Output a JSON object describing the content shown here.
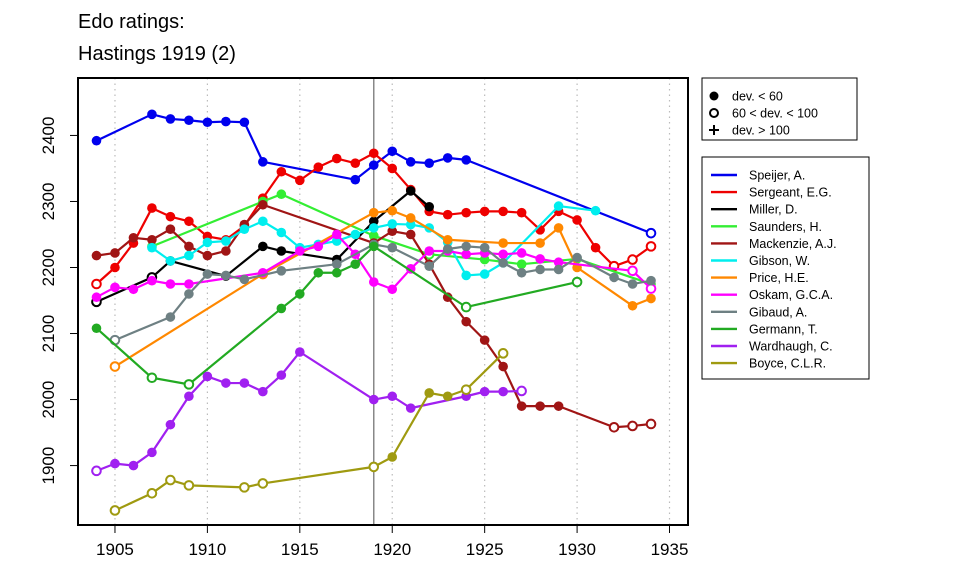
{
  "chart_data": {
    "type": "line",
    "title": "Edo ratings:",
    "subtitle": "Hastings 1919 (2)",
    "xlabel": "",
    "ylabel": "",
    "xlim": [
      1903,
      1936
    ],
    "ylim": [
      1810,
      2487
    ],
    "x_ticks": [
      1905,
      1910,
      1915,
      1920,
      1925,
      1930,
      1935
    ],
    "y_ticks": [
      1900,
      2000,
      2100,
      2200,
      2300,
      2400
    ],
    "reference_line_x": 1919,
    "grid": "dotted vertical at x ticks",
    "marker_legend": [
      {
        "key": "filled",
        "label": "dev. < 60"
      },
      {
        "key": "open",
        "label": "60 < dev. < 100"
      },
      {
        "key": "plus",
        "label": "dev. > 100"
      }
    ],
    "series": [
      {
        "name": "Speijer, A.",
        "color": "#0000ee",
        "points": [
          [
            1904,
            2392,
            "f"
          ],
          [
            1907,
            2432,
            "f"
          ],
          [
            1908,
            2425,
            "f"
          ],
          [
            1909,
            2423,
            "f"
          ],
          [
            1910,
            2420,
            "f"
          ],
          [
            1911,
            2421,
            "f"
          ],
          [
            1912,
            2420,
            "f"
          ],
          [
            1913,
            2360,
            "f"
          ],
          [
            1918,
            2333,
            "f"
          ],
          [
            1919,
            2355,
            "f"
          ],
          [
            1920,
            2376,
            "f"
          ],
          [
            1921,
            2360,
            "f"
          ],
          [
            1922,
            2358,
            "f"
          ],
          [
            1923,
            2366,
            "f"
          ],
          [
            1924,
            2363,
            "f"
          ],
          [
            1934,
            2252,
            "o"
          ]
        ]
      },
      {
        "name": "Sergeant, E.G.",
        "color": "#ee0000",
        "points": [
          [
            1904,
            2175,
            "o"
          ],
          [
            1905,
            2200,
            "f"
          ],
          [
            1906,
            2237,
            "f"
          ],
          [
            1907,
            2290,
            "f"
          ],
          [
            1908,
            2277,
            "f"
          ],
          [
            1909,
            2270,
            "f"
          ],
          [
            1910,
            2247,
            "f"
          ],
          [
            1911,
            2242,
            "f"
          ],
          [
            1912,
            2263,
            "f"
          ],
          [
            1913,
            2305,
            "f"
          ],
          [
            1914,
            2345,
            "f"
          ],
          [
            1915,
            2332,
            "f"
          ],
          [
            1916,
            2352,
            "f"
          ],
          [
            1917,
            2365,
            "f"
          ],
          [
            1918,
            2358,
            "f"
          ],
          [
            1919,
            2373,
            "f"
          ],
          [
            1920,
            2350,
            "f"
          ],
          [
            1921,
            2318,
            "f"
          ],
          [
            1922,
            2285,
            "f"
          ],
          [
            1923,
            2280,
            "f"
          ],
          [
            1924,
            2283,
            "f"
          ],
          [
            1925,
            2285,
            "f"
          ],
          [
            1926,
            2285,
            "f"
          ],
          [
            1927,
            2283,
            "f"
          ],
          [
            1928,
            2257,
            "f"
          ],
          [
            1929,
            2285,
            "f"
          ],
          [
            1930,
            2272,
            "f"
          ],
          [
            1931,
            2230,
            "f"
          ],
          [
            1932,
            2202,
            "o"
          ],
          [
            1933,
            2212,
            "o"
          ],
          [
            1934,
            2232,
            "o"
          ]
        ]
      },
      {
        "name": "Miller, D.",
        "color": "#000000",
        "points": [
          [
            1904,
            2148,
            "o"
          ],
          [
            1907,
            2185,
            "o"
          ],
          [
            1908,
            2210,
            "f"
          ],
          [
            1911,
            2187,
            "f"
          ],
          [
            1913,
            2232,
            "f"
          ],
          [
            1914,
            2225,
            "f"
          ],
          [
            1917,
            2212,
            "f"
          ],
          [
            1919,
            2270,
            "f"
          ],
          [
            1921,
            2316,
            "f"
          ],
          [
            1922,
            2292,
            "f"
          ]
        ]
      },
      {
        "name": "Saunders, H.",
        "color": "#33ee33",
        "points": [
          [
            1907,
            2232,
            "f"
          ],
          [
            1913,
            2300,
            "f"
          ],
          [
            1914,
            2311,
            "f"
          ],
          [
            1919,
            2248,
            "f"
          ],
          [
            1922,
            2220,
            "o"
          ],
          [
            1925,
            2212,
            "f"
          ],
          [
            1927,
            2205,
            "f"
          ],
          [
            1930,
            2213,
            "f"
          ],
          [
            1934,
            2175,
            "f"
          ]
        ]
      },
      {
        "name": "Mackenzie, A.J.",
        "color": "#a01515",
        "points": [
          [
            1904,
            2218,
            "f"
          ],
          [
            1905,
            2222,
            "f"
          ],
          [
            1906,
            2245,
            "f"
          ],
          [
            1907,
            2242,
            "f"
          ],
          [
            1908,
            2258,
            "f"
          ],
          [
            1909,
            2232,
            "f"
          ],
          [
            1910,
            2218,
            "f"
          ],
          [
            1911,
            2225,
            "f"
          ],
          [
            1912,
            2265,
            "f"
          ],
          [
            1913,
            2295,
            "f"
          ],
          [
            1919,
            2237,
            "f"
          ],
          [
            1920,
            2255,
            "f"
          ],
          [
            1921,
            2250,
            "f"
          ],
          [
            1922,
            2205,
            "f"
          ],
          [
            1923,
            2155,
            "f"
          ],
          [
            1924,
            2118,
            "f"
          ],
          [
            1925,
            2090,
            "f"
          ],
          [
            1926,
            2050,
            "f"
          ],
          [
            1927,
            1990,
            "f"
          ],
          [
            1928,
            1990,
            "f"
          ],
          [
            1929,
            1990,
            "f"
          ],
          [
            1932,
            1958,
            "o"
          ],
          [
            1933,
            1960,
            "o"
          ],
          [
            1934,
            1963,
            "o"
          ]
        ]
      },
      {
        "name": "Gibson, W.",
        "color": "#00eeee",
        "points": [
          [
            1907,
            2230,
            "f"
          ],
          [
            1908,
            2210,
            "f"
          ],
          [
            1909,
            2218,
            "f"
          ],
          [
            1910,
            2238,
            "f"
          ],
          [
            1911,
            2240,
            "f"
          ],
          [
            1912,
            2258,
            "f"
          ],
          [
            1913,
            2270,
            "f"
          ],
          [
            1914,
            2253,
            "f"
          ],
          [
            1915,
            2230,
            "f"
          ],
          [
            1916,
            2235,
            "f"
          ],
          [
            1917,
            2240,
            "f"
          ],
          [
            1918,
            2250,
            "f"
          ],
          [
            1919,
            2260,
            "f"
          ],
          [
            1920,
            2266,
            "f"
          ],
          [
            1921,
            2265,
            "f"
          ],
          [
            1922,
            2260,
            "f"
          ],
          [
            1923,
            2238,
            "f"
          ],
          [
            1924,
            2188,
            "f"
          ],
          [
            1925,
            2190,
            "f"
          ],
          [
            1926,
            2207,
            "f"
          ],
          [
            1929,
            2293,
            "f"
          ],
          [
            1931,
            2286,
            "f"
          ]
        ]
      },
      {
        "name": "Price, H.E.",
        "color": "#ff8800",
        "points": [
          [
            1905,
            2050,
            "o"
          ],
          [
            1913,
            2190,
            "o"
          ],
          [
            1919,
            2283,
            "f"
          ],
          [
            1920,
            2286,
            "f"
          ],
          [
            1921,
            2275,
            "f"
          ],
          [
            1923,
            2242,
            "f"
          ],
          [
            1926,
            2237,
            "f"
          ],
          [
            1928,
            2237,
            "f"
          ],
          [
            1929,
            2260,
            "f"
          ],
          [
            1930,
            2200,
            "f"
          ],
          [
            1933,
            2142,
            "f"
          ],
          [
            1934,
            2153,
            "f"
          ]
        ]
      },
      {
        "name": "Oskam, G.C.A.",
        "color": "#ff00ff",
        "points": [
          [
            1904,
            2155,
            "f"
          ],
          [
            1905,
            2170,
            "f"
          ],
          [
            1906,
            2167,
            "f"
          ],
          [
            1907,
            2180,
            "f"
          ],
          [
            1908,
            2175,
            "f"
          ],
          [
            1909,
            2175,
            "f"
          ],
          [
            1913,
            2192,
            "f"
          ],
          [
            1915,
            2225,
            "f"
          ],
          [
            1916,
            2232,
            "f"
          ],
          [
            1917,
            2250,
            "f"
          ],
          [
            1918,
            2220,
            "f"
          ],
          [
            1919,
            2178,
            "f"
          ],
          [
            1920,
            2167,
            "f"
          ],
          [
            1921,
            2198,
            "f"
          ],
          [
            1922,
            2225,
            "f"
          ],
          [
            1923,
            2225,
            "f"
          ],
          [
            1924,
            2220,
            "f"
          ],
          [
            1925,
            2222,
            "f"
          ],
          [
            1926,
            2220,
            "f"
          ],
          [
            1927,
            2222,
            "f"
          ],
          [
            1928,
            2213,
            "f"
          ],
          [
            1929,
            2208,
            "f"
          ],
          [
            1933,
            2195,
            "o"
          ],
          [
            1934,
            2168,
            "o"
          ]
        ]
      },
      {
        "name": "Gibaud, A.",
        "color": "#6e8083",
        "points": [
          [
            1905,
            2090,
            "o"
          ],
          [
            1908,
            2125,
            "f"
          ],
          [
            1909,
            2160,
            "f"
          ],
          [
            1910,
            2190,
            "f"
          ],
          [
            1911,
            2188,
            "f"
          ],
          [
            1912,
            2182,
            "f"
          ],
          [
            1914,
            2195,
            "f"
          ],
          [
            1917,
            2205,
            "f"
          ],
          [
            1919,
            2235,
            "f"
          ],
          [
            1920,
            2230,
            "f"
          ],
          [
            1922,
            2202,
            "f"
          ],
          [
            1923,
            2228,
            "f"
          ],
          [
            1924,
            2232,
            "f"
          ],
          [
            1925,
            2230,
            "f"
          ],
          [
            1926,
            2207,
            "f"
          ],
          [
            1927,
            2192,
            "f"
          ],
          [
            1928,
            2197,
            "f"
          ],
          [
            1929,
            2197,
            "f"
          ],
          [
            1930,
            2215,
            "f"
          ],
          [
            1932,
            2185,
            "f"
          ],
          [
            1933,
            2175,
            "f"
          ],
          [
            1934,
            2180,
            "f"
          ]
        ]
      },
      {
        "name": "Germann, T.",
        "color": "#22aa22",
        "points": [
          [
            1904,
            2108,
            "f"
          ],
          [
            1907,
            2033,
            "o"
          ],
          [
            1909,
            2023,
            "o"
          ],
          [
            1914,
            2138,
            "f"
          ],
          [
            1915,
            2160,
            "f"
          ],
          [
            1916,
            2192,
            "f"
          ],
          [
            1917,
            2192,
            "f"
          ],
          [
            1918,
            2205,
            "f"
          ],
          [
            1919,
            2232,
            "f"
          ],
          [
            1924,
            2140,
            "o"
          ],
          [
            1930,
            2178,
            "o"
          ]
        ]
      },
      {
        "name": "Wardhaugh, C.",
        "color": "#a020f0",
        "points": [
          [
            1904,
            1892,
            "o"
          ],
          [
            1905,
            1903,
            "f"
          ],
          [
            1906,
            1900,
            "f"
          ],
          [
            1907,
            1920,
            "f"
          ],
          [
            1908,
            1962,
            "f"
          ],
          [
            1909,
            2005,
            "f"
          ],
          [
            1910,
            2035,
            "f"
          ],
          [
            1911,
            2025,
            "f"
          ],
          [
            1912,
            2025,
            "f"
          ],
          [
            1913,
            2012,
            "f"
          ],
          [
            1914,
            2037,
            "f"
          ],
          [
            1915,
            2072,
            "f"
          ],
          [
            1919,
            2000,
            "f"
          ],
          [
            1920,
            2005,
            "f"
          ],
          [
            1921,
            1987,
            "f"
          ],
          [
            1924,
            2005,
            "f"
          ],
          [
            1925,
            2012,
            "f"
          ],
          [
            1926,
            2012,
            "f"
          ],
          [
            1927,
            2013,
            "o"
          ]
        ]
      },
      {
        "name": "Boyce, C.L.R.",
        "color": "#9f9a10",
        "points": [
          [
            1905,
            1832,
            "o"
          ],
          [
            1907,
            1858,
            "o"
          ],
          [
            1908,
            1878,
            "o"
          ],
          [
            1909,
            1870,
            "o"
          ],
          [
            1912,
            1867,
            "o"
          ],
          [
            1913,
            1873,
            "o"
          ],
          [
            1919,
            1898,
            "o"
          ],
          [
            1920,
            1913,
            "f"
          ],
          [
            1922,
            2010,
            "f"
          ],
          [
            1923,
            2005,
            "f"
          ],
          [
            1924,
            2015,
            "o"
          ],
          [
            1926,
            2070,
            "o"
          ]
        ]
      }
    ]
  }
}
